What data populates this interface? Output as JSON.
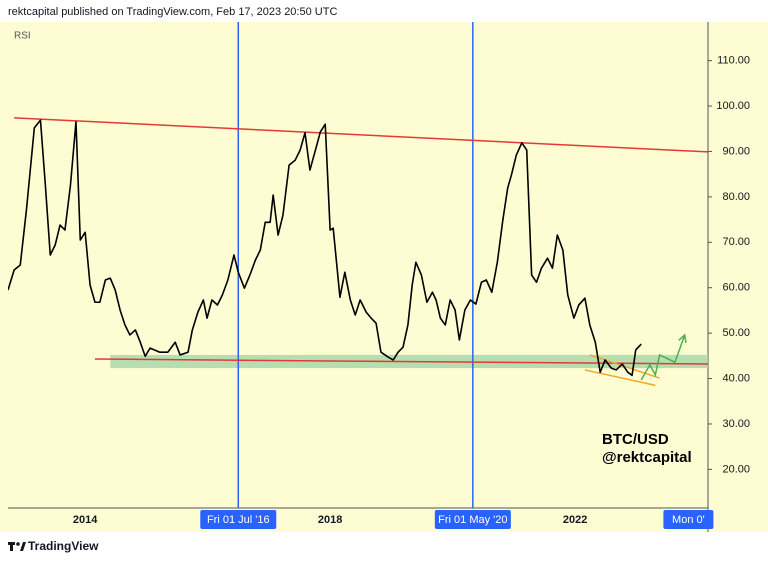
{
  "header": "rektcapital published on TradingView.com, Feb 17, 2023 20:50 UTC",
  "footer": "TradingView",
  "chart_data": {
    "type": "line",
    "title": "RSI",
    "annotations": [
      "BTC/USD",
      "@rektcapital"
    ],
    "xlim": [
      2012.74,
      2024.17
    ],
    "ylim": [
      11.5,
      118.5
    ],
    "xticks": [
      2014,
      2018,
      2022
    ],
    "yticks": [
      {
        "value": 20,
        "label": "20.00"
      },
      {
        "value": 30,
        "label": "30.00"
      },
      {
        "value": 40,
        "label": "40.00"
      },
      {
        "value": 50,
        "label": "50.00"
      },
      {
        "value": 60,
        "label": "60.00"
      },
      {
        "value": 70,
        "label": "70.00"
      },
      {
        "value": 80,
        "label": "80.00"
      },
      {
        "value": 90,
        "label": "90.00"
      },
      {
        "value": 100,
        "label": "100.00"
      },
      {
        "value": 110,
        "label": "110.00"
      }
    ],
    "vlines": [
      {
        "x": 2016.5,
        "label": "Fri 01 Jul '16",
        "color": "#2962ff"
      },
      {
        "x": 2020.33,
        "label": "Fri 01 May '20",
        "color": "#2962ff"
      }
    ],
    "time_marker": {
      "x": 2023.85,
      "label": "Mon 0'",
      "color": "#2962ff"
    },
    "series": [
      {
        "name": "RSI",
        "color": "#000000",
        "x": [
          2012.74,
          2012.84,
          2012.94,
          2013.04,
          2013.17,
          2013.27,
          2013.35,
          2013.43,
          2013.51,
          2013.59,
          2013.67,
          2013.76,
          2013.85,
          2013.92,
          2014.0,
          2014.08,
          2014.16,
          2014.24,
          2014.33,
          2014.41,
          2014.49,
          2014.57,
          2014.65,
          2014.73,
          2014.82,
          2014.9,
          2014.98,
          2015.06,
          2015.22,
          2015.35,
          2015.47,
          2015.55,
          2015.68,
          2015.75,
          2015.84,
          2015.93,
          2015.99,
          2016.07,
          2016.16,
          2016.24,
          2016.33,
          2016.43,
          2016.5,
          2016.6,
          2016.69,
          2016.78,
          2016.86,
          2016.94,
          2017.02,
          2017.07,
          2017.15,
          2017.23,
          2017.33,
          2017.43,
          2017.51,
          2017.59,
          2017.67,
          2017.76,
          2017.84,
          2017.92,
          2018.0,
          2018.05,
          2018.16,
          2018.24,
          2018.33,
          2018.41,
          2018.49,
          2018.59,
          2018.67,
          2018.75,
          2018.83,
          2018.95,
          2019.03,
          2019.11,
          2019.19,
          2019.27,
          2019.34,
          2019.4,
          2019.49,
          2019.58,
          2019.67,
          2019.73,
          2019.8,
          2019.88,
          2019.96,
          2020.04,
          2020.11,
          2020.2,
          2020.29,
          2020.38,
          2020.47,
          2020.55,
          2020.64,
          2020.73,
          2020.82,
          2020.9,
          2020.96,
          2021.04,
          2021.13,
          2021.21,
          2021.29,
          2021.37,
          2021.45,
          2021.55,
          2021.63,
          2021.71,
          2021.8,
          2021.88,
          2021.98,
          2022.06,
          2022.16,
          2022.24,
          2022.33,
          2022.41,
          2022.49,
          2022.59,
          2022.67,
          2022.77,
          2022.86,
          2022.93,
          2022.99,
          2023.08
        ],
        "values": [
          59.5,
          63.9,
          65,
          77,
          95.2,
          96.9,
          82.6,
          67.2,
          69.4,
          73.8,
          72.7,
          82.6,
          96.5,
          70.5,
          72.2,
          60.6,
          56.8,
          56.8,
          61.7,
          62.1,
          59.5,
          55.1,
          51.8,
          49.6,
          50.7,
          48,
          44.9,
          46.7,
          45.8,
          45.8,
          48,
          45.2,
          45.8,
          50.7,
          54.6,
          57.3,
          53.3,
          57.3,
          56.2,
          58.4,
          61.7,
          67.2,
          63.4,
          59.9,
          62.8,
          66.1,
          68.3,
          74.4,
          74.4,
          80.4,
          71.6,
          76,
          87,
          88.1,
          90.3,
          94.1,
          85.9,
          90.3,
          94.3,
          96,
          72.7,
          73.1,
          57.9,
          63.4,
          57.3,
          54,
          57.3,
          54.6,
          53.3,
          52.2,
          45.8,
          44.7,
          44.1,
          45.8,
          46.9,
          51.8,
          60.6,
          65.6,
          62.8,
          56.8,
          59,
          57.3,
          53.3,
          51.8,
          57.3,
          55.1,
          48.5,
          55.1,
          57.3,
          56.4,
          61.2,
          61.7,
          59,
          65.6,
          74.9,
          82,
          84.8,
          89.2,
          91.9,
          90.3,
          62.8,
          61.2,
          64.3,
          66.5,
          64.3,
          71.6,
          68.3,
          58.4,
          53.3,
          56.2,
          57.7,
          51.8,
          48,
          41.4,
          44.1,
          42.3,
          41.9,
          43.2,
          41.4,
          40.7,
          46.3,
          47.6
        ]
      }
    ],
    "drawings": [
      {
        "kind": "line",
        "color": "#e53935",
        "x": [
          2012.84,
          2024.17
        ],
        "y": [
          97.4,
          89.9
        ]
      },
      {
        "kind": "line",
        "color": "#e53935",
        "x": [
          2014.16,
          2024.17
        ],
        "y": [
          44.3,
          43.2
        ]
      },
      {
        "kind": "band",
        "color": "#a5d6a7",
        "x": [
          2014.41,
          2024.17
        ],
        "y": [
          42.3,
          45.2
        ]
      },
      {
        "kind": "line",
        "color": "#f5a623",
        "x": [
          2022.24,
          2023.38
        ],
        "y": [
          45.2,
          40.1
        ]
      },
      {
        "kind": "line",
        "color": "#f5a623",
        "x": [
          2022.16,
          2023.31
        ],
        "y": [
          41.9,
          38.5
        ]
      },
      {
        "kind": "arrow",
        "color": "#4caf50",
        "x": [
          2023.08,
          2023.22,
          2023.31,
          2023.38,
          2023.63,
          2023.79
        ],
        "y": [
          39.7,
          43,
          40.8,
          45.2,
          43.6,
          49.6
        ]
      }
    ]
  }
}
